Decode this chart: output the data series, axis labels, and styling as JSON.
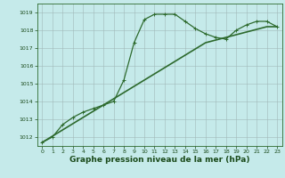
{
  "series1": {
    "x": [
      0,
      1,
      2,
      3,
      4,
      5,
      6,
      7,
      8,
      9,
      10,
      11,
      12,
      13,
      14,
      15,
      16,
      17,
      18,
      19,
      20,
      21,
      22,
      23
    ],
    "y": [
      1011.7,
      1012.0,
      1012.7,
      1013.1,
      1013.4,
      1013.6,
      1013.8,
      1014.0,
      1015.2,
      1017.3,
      1018.6,
      1018.9,
      1018.9,
      1018.9,
      1018.5,
      1018.1,
      1017.8,
      1017.6,
      1017.5,
      1018.0,
      1018.3,
      1018.5,
      1018.5,
      1018.2
    ],
    "color": "#2d6a2d",
    "linewidth": 0.9,
    "marker": "+"
  },
  "series2": {
    "x": [
      0,
      1,
      2,
      3,
      4,
      5,
      6,
      7,
      8,
      9,
      10,
      11,
      12,
      13,
      14,
      15,
      16,
      17,
      18,
      19,
      20,
      21,
      22,
      23
    ],
    "y": [
      1011.7,
      1012.05,
      1012.4,
      1012.75,
      1013.1,
      1013.45,
      1013.8,
      1014.15,
      1014.5,
      1014.85,
      1015.2,
      1015.55,
      1015.9,
      1016.25,
      1016.6,
      1016.95,
      1017.3,
      1017.45,
      1017.6,
      1017.75,
      1017.9,
      1018.05,
      1018.2,
      1018.2
    ],
    "color": "#2d6a2d",
    "linewidth": 1.2,
    "marker": null
  },
  "ylim": [
    1011.5,
    1019.5
  ],
  "yticks": [
    1012,
    1013,
    1014,
    1015,
    1016,
    1017,
    1018,
    1019
  ],
  "xlim": [
    -0.5,
    23.5
  ],
  "xticks": [
    0,
    1,
    2,
    3,
    4,
    5,
    6,
    7,
    8,
    9,
    10,
    11,
    12,
    13,
    14,
    15,
    16,
    17,
    18,
    19,
    20,
    21,
    22,
    23
  ],
  "xlabel": "Graphe pression niveau de la mer (hPa)",
  "background_color": "#c5eaea",
  "grid_color": "#a0b8b8",
  "text_color": "#1a4a1a",
  "axis_color": "#2d6a2d",
  "tick_fontsize": 4.5,
  "xlabel_fontsize": 6.5
}
